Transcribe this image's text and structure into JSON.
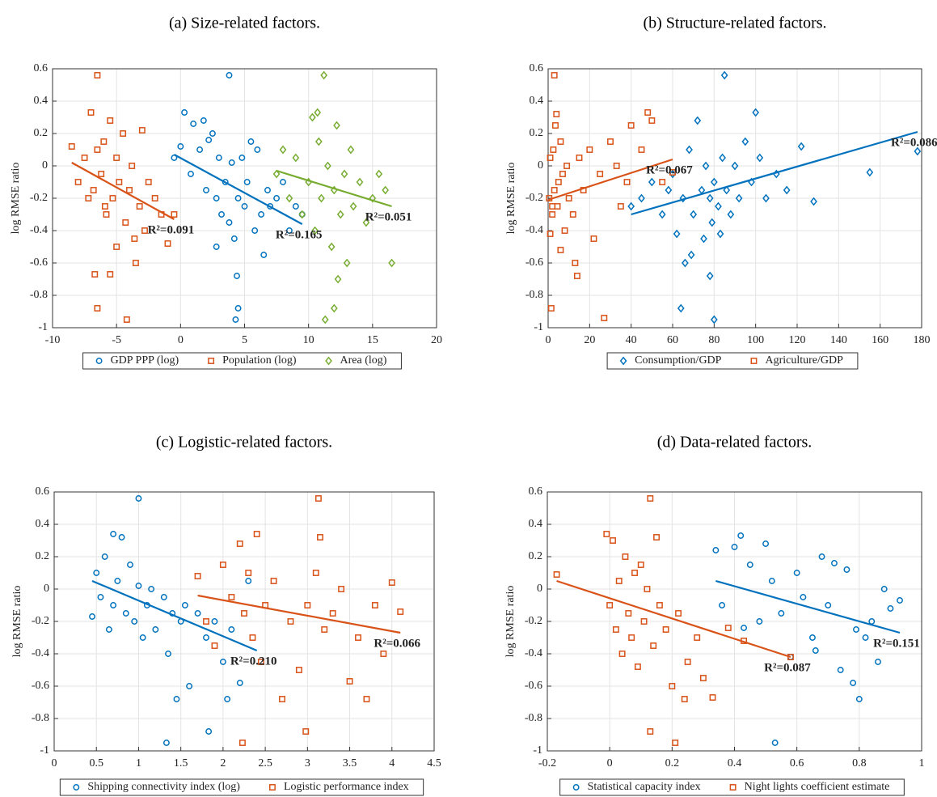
{
  "chart_data": [
    {
      "type": "scatter",
      "title": "(a) Size-related factors.",
      "ylabel": "log RMSE ratio",
      "xlim": [
        -10,
        20
      ],
      "xticks": [
        -10,
        -5,
        0,
        5,
        10,
        15,
        20
      ],
      "ylim": [
        -1,
        0.6
      ],
      "yticks": [
        -1,
        -0.8,
        -0.6,
        -0.4,
        -0.2,
        0,
        0.2,
        0.4,
        0.6
      ],
      "grid": true,
      "series": [
        {
          "name": "GDP PPP (log)",
          "color": "#0072BD",
          "marker": "circle",
          "x": [
            -0.5,
            0,
            0.3,
            0.8,
            1,
            1.5,
            1.8,
            2,
            2.2,
            2.5,
            2.8,
            3,
            3.2,
            3.5,
            3.8,
            4,
            4.2,
            4.5,
            4.5,
            4.8,
            5,
            5.2,
            5.5,
            5.8,
            6,
            6.3,
            6.8,
            7,
            7.5,
            8,
            8.5,
            9,
            9.5,
            3.8,
            4.3,
            4.4,
            2.8,
            6.5
          ],
          "values": [
            0.05,
            0.12,
            0.33,
            -0.05,
            0.26,
            0.1,
            0.28,
            -0.15,
            0.16,
            0.2,
            -0.2,
            0.05,
            -0.3,
            -0.1,
            -0.35,
            0.02,
            -0.45,
            -0.2,
            -0.88,
            0.05,
            -0.25,
            -0.1,
            0.15,
            -0.4,
            0.1,
            -0.3,
            -0.15,
            -0.25,
            -0.2,
            -0.1,
            -0.4,
            -0.25,
            -0.3,
            0.56,
            -0.95,
            -0.68,
            -0.5,
            -0.55
          ],
          "fit": {
            "x": [
              -0.5,
              9.5
            ],
            "y": [
              0.07,
              -0.36
            ]
          },
          "annotation": "R²=0.165"
        },
        {
          "name": "Population (log)",
          "color": "#D95319",
          "marker": "square",
          "x": [
            -8.5,
            -8,
            -7.5,
            -7.2,
            -7,
            -6.8,
            -6.5,
            -6.5,
            -6.2,
            -6,
            -5.8,
            -5.5,
            -5.3,
            -5,
            -5,
            -4.8,
            -4.5,
            -4.3,
            -4,
            -3.8,
            -3.5,
            -3.2,
            -3,
            -2.8,
            -2.5,
            -2,
            -1.5,
            -1,
            -0.5,
            -6.5,
            -6.7,
            -4.2,
            -3.6,
            -5.5,
            -5.9
          ],
          "values": [
            0.12,
            -0.1,
            0.05,
            -0.2,
            0.33,
            -0.15,
            0.1,
            -0.88,
            -0.05,
            0.15,
            -0.3,
            0.28,
            -0.2,
            0.05,
            -0.5,
            -0.1,
            0.2,
            -0.35,
            -0.15,
            0.0,
            -0.6,
            -0.25,
            0.22,
            -0.4,
            -0.1,
            -0.2,
            -0.3,
            -0.48,
            -0.3,
            0.56,
            -0.67,
            -0.95,
            -0.45,
            -0.67,
            -0.25
          ],
          "fit": {
            "x": [
              -8.5,
              -0.5
            ],
            "y": [
              0.02,
              -0.33
            ]
          },
          "annotation": "R²=0.091"
        },
        {
          "name": "Area (log)",
          "color": "#77AC30",
          "marker": "diamond",
          "x": [
            7.5,
            8,
            8.5,
            9,
            9.5,
            10,
            10.3,
            10.5,
            10.8,
            11,
            11.2,
            11.5,
            11.8,
            12,
            12.2,
            12.5,
            12.8,
            13,
            13.3,
            13.5,
            14,
            14.5,
            15,
            15.5,
            16,
            16.5,
            11.3,
            12,
            12.3,
            10.7
          ],
          "values": [
            -0.05,
            0.1,
            -0.2,
            0.05,
            -0.3,
            -0.1,
            0.3,
            -0.4,
            0.15,
            -0.2,
            0.56,
            0.0,
            -0.5,
            -0.15,
            0.25,
            -0.3,
            -0.05,
            -0.6,
            0.1,
            -0.25,
            -0.1,
            -0.35,
            -0.2,
            -0.05,
            -0.15,
            -0.6,
            -0.95,
            -0.88,
            -0.7,
            0.33
          ],
          "fit": {
            "x": [
              7.5,
              16.5
            ],
            "y": [
              -0.03,
              -0.25
            ]
          },
          "annotation": "R²=0.051"
        }
      ]
    },
    {
      "type": "scatter",
      "title": "(b) Structure-related factors.",
      "ylabel": "log RMSE ratio",
      "xlim": [
        0,
        180
      ],
      "xticks": [
        0,
        20,
        40,
        60,
        80,
        100,
        120,
        140,
        160,
        180
      ],
      "ylim": [
        -1,
        0.6
      ],
      "yticks": [
        -1,
        -0.8,
        -0.6,
        -0.4,
        -0.2,
        0,
        0.2,
        0.4,
        0.6
      ],
      "grid": true,
      "series": [
        {
          "name": "Consumption/GDP",
          "color": "#0072BD",
          "marker": "diamond",
          "x": [
            40,
            45,
            50,
            55,
            58,
            60,
            62,
            65,
            66,
            68,
            70,
            72,
            74,
            75,
            76,
            78,
            78,
            80,
            80,
            82,
            84,
            85,
            86,
            88,
            90,
            92,
            95,
            98,
            100,
            102,
            105,
            110,
            115,
            122,
            128,
            155,
            178,
            64,
            83,
            79,
            69
          ],
          "values": [
            -0.25,
            -0.2,
            -0.1,
            -0.3,
            -0.15,
            -0.05,
            -0.42,
            -0.2,
            -0.6,
            0.1,
            -0.3,
            0.28,
            -0.15,
            -0.45,
            0.0,
            -0.2,
            -0.68,
            -0.1,
            -0.95,
            -0.25,
            0.05,
            0.56,
            -0.15,
            -0.3,
            0.0,
            -0.2,
            0.15,
            -0.1,
            0.33,
            0.05,
            -0.2,
            -0.05,
            -0.15,
            0.12,
            -0.22,
            -0.04,
            0.09,
            -0.88,
            -0.42,
            -0.35,
            -0.55
          ],
          "fit": {
            "x": [
              40,
              178
            ],
            "y": [
              -0.3,
              0.21
            ]
          },
          "annotation": "R²=0.086"
        },
        {
          "name": "Agriculture/GDP",
          "color": "#D95319",
          "marker": "square",
          "x": [
            0.5,
            1,
            1.5,
            2,
            2.5,
            3,
            3,
            4,
            4.5,
            5,
            6,
            7,
            8,
            9,
            10,
            12,
            14,
            15,
            17,
            20,
            22,
            25,
            27,
            30,
            33,
            35,
            38,
            40,
            45,
            48,
            50,
            55,
            60,
            1,
            2,
            3.5,
            6,
            13
          ],
          "values": [
            -0.2,
            0.05,
            -0.88,
            -0.3,
            0.1,
            -0.15,
            0.56,
            0.32,
            -0.25,
            -0.1,
            0.15,
            -0.05,
            -0.4,
            0.0,
            -0.2,
            -0.3,
            -0.68,
            0.05,
            -0.15,
            0.1,
            -0.45,
            -0.05,
            -0.94,
            0.15,
            0.0,
            -0.25,
            -0.1,
            0.25,
            0.1,
            0.33,
            0.28,
            -0.1,
            -0.04,
            -0.42,
            -0.25,
            0.25,
            -0.52,
            -0.6
          ],
          "fit": {
            "x": [
              0,
              60
            ],
            "y": [
              -0.21,
              0.04
            ]
          },
          "annotation": "R²=0.067"
        }
      ]
    },
    {
      "type": "scatter",
      "title": "(c) Logistic-related factors.",
      "ylabel": "log RMSE ratio",
      "xlim": [
        0,
        4.5
      ],
      "xticks": [
        0,
        0.5,
        1,
        1.5,
        2,
        2.5,
        3,
        3.5,
        4,
        4.5
      ],
      "ylim": [
        -1,
        0.6
      ],
      "yticks": [
        -1,
        -0.8,
        -0.6,
        -0.4,
        -0.2,
        0,
        0.2,
        0.4,
        0.6
      ],
      "grid": true,
      "series": [
        {
          "name": "Shipping connectivity index (log)",
          "color": "#0072BD",
          "marker": "circle",
          "x": [
            0.45,
            0.5,
            0.55,
            0.6,
            0.65,
            0.7,
            0.7,
            0.75,
            0.8,
            0.85,
            0.9,
            0.95,
            1.0,
            1.0,
            1.05,
            1.1,
            1.15,
            1.2,
            1.3,
            1.35,
            1.4,
            1.45,
            1.5,
            1.55,
            1.6,
            1.7,
            1.8,
            1.9,
            2.0,
            2.1,
            2.2,
            2.3,
            1.33,
            1.83,
            2.05
          ],
          "values": [
            -0.17,
            0.1,
            -0.05,
            0.2,
            -0.25,
            0.34,
            -0.1,
            0.05,
            0.32,
            -0.15,
            0.15,
            -0.2,
            0.56,
            0.02,
            -0.3,
            -0.1,
            0.0,
            -0.25,
            -0.05,
            -0.4,
            -0.15,
            -0.68,
            -0.2,
            -0.1,
            -0.6,
            -0.15,
            -0.3,
            -0.2,
            -0.45,
            -0.25,
            -0.58,
            0.05,
            -0.95,
            -0.88,
            -0.68
          ],
          "fit": {
            "x": [
              0.45,
              2.4
            ],
            "y": [
              0.05,
              -0.38
            ]
          },
          "annotation": "R²=0.210"
        },
        {
          "name": "Logistic performance index",
          "color": "#D95319",
          "marker": "square",
          "x": [
            1.7,
            1.8,
            1.9,
            2.0,
            2.1,
            2.2,
            2.25,
            2.3,
            2.35,
            2.4,
            2.45,
            2.5,
            2.6,
            2.7,
            2.8,
            2.9,
            3.0,
            3.1,
            3.15,
            3.2,
            3.3,
            3.4,
            3.5,
            3.6,
            3.7,
            3.8,
            3.9,
            4.0,
            4.1,
            2.23,
            2.98,
            3.13
          ],
          "values": [
            0.08,
            -0.2,
            -0.35,
            0.15,
            -0.05,
            0.28,
            -0.15,
            0.1,
            -0.3,
            0.34,
            -0.45,
            -0.1,
            0.05,
            -0.68,
            -0.2,
            -0.5,
            -0.1,
            0.1,
            0.32,
            -0.25,
            -0.15,
            0.0,
            -0.57,
            -0.3,
            -0.68,
            -0.1,
            -0.4,
            0.04,
            -0.14,
            -0.95,
            -0.88,
            0.56
          ],
          "fit": {
            "x": [
              1.7,
              4.1
            ],
            "y": [
              -0.04,
              -0.27
            ]
          },
          "annotation": "R²=0.066"
        }
      ]
    },
    {
      "type": "scatter",
      "title": "(d) Data-related factors.",
      "ylabel": "log RMSE ratio",
      "xlim": [
        -0.2,
        1
      ],
      "xticks": [
        -0.2,
        0,
        0.2,
        0.4,
        0.6,
        0.8,
        1
      ],
      "ylim": [
        -1,
        0.6
      ],
      "yticks": [
        -1,
        -0.8,
        -0.6,
        -0.4,
        -0.2,
        0,
        0.2,
        0.4,
        0.6
      ],
      "grid": true,
      "series": [
        {
          "name": "Statistical capacity index",
          "color": "#0072BD",
          "marker": "circle",
          "x": [
            0.34,
            0.36,
            0.4,
            0.42,
            0.45,
            0.48,
            0.5,
            0.52,
            0.55,
            0.58,
            0.6,
            0.62,
            0.65,
            0.68,
            0.7,
            0.72,
            0.74,
            0.76,
            0.78,
            0.8,
            0.82,
            0.84,
            0.86,
            0.88,
            0.9,
            0.93,
            0.53,
            0.79,
            0.43,
            0.66
          ],
          "values": [
            0.24,
            -0.1,
            0.26,
            0.33,
            0.15,
            -0.2,
            0.28,
            0.05,
            -0.15,
            -0.42,
            0.1,
            -0.05,
            -0.3,
            0.2,
            -0.1,
            0.16,
            -0.5,
            0.12,
            -0.58,
            -0.68,
            -0.3,
            -0.2,
            -0.45,
            0.0,
            -0.12,
            -0.07,
            -0.95,
            -0.25,
            -0.24,
            -0.38
          ],
          "fit": {
            "x": [
              0.34,
              0.93
            ],
            "y": [
              0.05,
              -0.27
            ]
          },
          "annotation": "R²=0.151"
        },
        {
          "name": "Night lights coefficient estimate",
          "color": "#D95319",
          "marker": "square",
          "x": [
            -0.17,
            -0.01,
            0.0,
            0.01,
            0.02,
            0.03,
            0.04,
            0.05,
            0.06,
            0.07,
            0.08,
            0.09,
            0.1,
            0.11,
            0.12,
            0.13,
            0.14,
            0.15,
            0.16,
            0.18,
            0.2,
            0.22,
            0.25,
            0.28,
            0.3,
            0.33,
            0.38,
            0.43,
            0.58,
            0.13,
            0.21,
            0.24
          ],
          "values": [
            0.09,
            0.34,
            -0.1,
            0.3,
            -0.25,
            0.05,
            -0.4,
            0.2,
            -0.15,
            -0.3,
            0.1,
            -0.48,
            0.15,
            -0.2,
            0.0,
            0.56,
            -0.35,
            0.32,
            -0.1,
            -0.25,
            -0.6,
            -0.15,
            -0.45,
            -0.3,
            -0.55,
            -0.67,
            -0.24,
            -0.32,
            -0.42,
            -0.88,
            -0.95,
            -0.68
          ],
          "fit": {
            "x": [
              -0.17,
              0.58
            ],
            "y": [
              0.05,
              -0.42
            ]
          },
          "annotation": "R²=0.087"
        }
      ]
    }
  ]
}
